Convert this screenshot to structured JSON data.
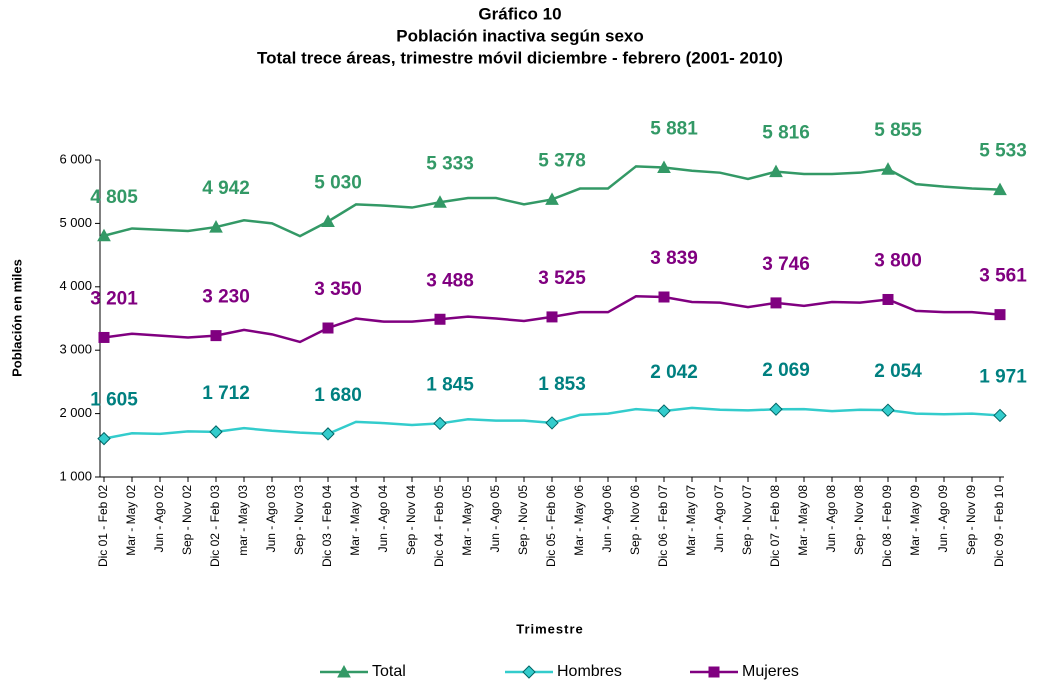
{
  "chart_data": {
    "type": "line",
    "title": "Gráfico 10",
    "subtitle": "Población inactiva según sexo",
    "subtitle_2": "Total trece áreas, trimestre móvil diciembre  - febrero (2001- 2010)",
    "y_label": "Población en miles",
    "x_label": "Trimestre",
    "categories": [
      "Dic 01 - Feb 02",
      "Mar - May 02",
      "Jun - Ago 02",
      "Sep - Nov 02",
      "Dic 02 - Feb 03",
      "mar - May 03",
      "Jun - Ago 03",
      "Sep - Nov 03",
      "Dic 03 - Feb 04",
      "Mar - May 04",
      "Jun - Ago 04",
      "Sep - Nov 04",
      "Dic 04 - Feb 05",
      "Mar - May 05",
      "Jun - Ago 05",
      "Sep - Nov 05",
      "Dic 05 - Feb 06",
      "Mar - May 06",
      "Jun - Ago 06",
      "Sep - Nov 06",
      "Dic  06 - Feb 07",
      "Mar - May 07",
      "Jun - Ago 07",
      "Sep - Nov 07",
      "Dic 07 - Feb 08",
      "Mar - May 08",
      "Jun - Ago 08",
      "Sep - Nov 08",
      "Dic 08 - Feb 09",
      "Mar - May 09",
      "Jun - Ago 09",
      "Sep - Nov 09",
      "Dic 09 - Feb 10"
    ],
    "series": [
      {
        "name": "Total",
        "color": "#339966",
        "label_color": "#339966",
        "marker": "triangle",
        "values": [
          4805,
          4920,
          4900,
          4880,
          4942,
          5050,
          5000,
          4800,
          5030,
          5300,
          5280,
          5250,
          5333,
          5400,
          5400,
          5300,
          5378,
          5550,
          5550,
          5900,
          5881,
          5830,
          5800,
          5700,
          5816,
          5780,
          5780,
          5800,
          5855,
          5620,
          5580,
          5550,
          5533
        ],
        "value_labels": [
          "4 805",
          null,
          null,
          null,
          "4 942",
          null,
          null,
          null,
          "5 030",
          null,
          null,
          null,
          "5 333",
          null,
          null,
          null,
          "5 378",
          null,
          null,
          null,
          "5 881",
          null,
          null,
          null,
          "5 816",
          null,
          null,
          null,
          "5 855",
          null,
          null,
          null,
          "5 533"
        ]
      },
      {
        "name": "Hombres",
        "color": "#33cccc",
        "label_color": "#008080",
        "marker": "diamond",
        "values": [
          1605,
          1690,
          1680,
          1720,
          1712,
          1770,
          1730,
          1700,
          1680,
          1870,
          1850,
          1820,
          1845,
          1910,
          1890,
          1890,
          1853,
          1980,
          2000,
          2070,
          2042,
          2090,
          2060,
          2050,
          2069,
          2070,
          2040,
          2060,
          2054,
          2000,
          1990,
          2000,
          1971
        ],
        "value_labels": [
          "1 605",
          null,
          null,
          null,
          "1 712",
          null,
          null,
          null,
          "1 680",
          null,
          null,
          null,
          "1 845",
          null,
          null,
          null,
          "1 853",
          null,
          null,
          null,
          "2 042",
          null,
          null,
          null,
          "2 069",
          null,
          null,
          null,
          "2 054",
          null,
          null,
          null,
          "1 971"
        ]
      },
      {
        "name": "Mujeres",
        "color": "#800080",
        "label_color": "#800080",
        "marker": "square",
        "values": [
          3201,
          3260,
          3230,
          3200,
          3230,
          3320,
          3250,
          3130,
          3350,
          3500,
          3450,
          3450,
          3488,
          3530,
          3500,
          3460,
          3525,
          3600,
          3600,
          3850,
          3839,
          3760,
          3750,
          3680,
          3746,
          3700,
          3760,
          3750,
          3800,
          3620,
          3600,
          3600,
          3561
        ],
        "value_labels": [
          "3 201",
          null,
          null,
          null,
          "3 230",
          null,
          null,
          null,
          "3 350",
          null,
          null,
          null,
          "3 488",
          null,
          null,
          null,
          "3 525",
          null,
          null,
          null,
          "3 839",
          null,
          null,
          null,
          "3 746",
          null,
          null,
          null,
          "3 800",
          null,
          null,
          null,
          "3 561"
        ]
      }
    ],
    "ylim": [
      1000,
      6000
    ],
    "yticks": [
      {
        "value": 1000,
        "label": "1 000"
      },
      {
        "value": 2000,
        "label": "2 000"
      },
      {
        "value": 3000,
        "label": "3 000"
      },
      {
        "value": 4000,
        "label": "4 000"
      },
      {
        "value": 5000,
        "label": "5 000"
      },
      {
        "value": 6000,
        "label": "6 000"
      }
    ],
    "grid": false,
    "legend": "bottom"
  }
}
